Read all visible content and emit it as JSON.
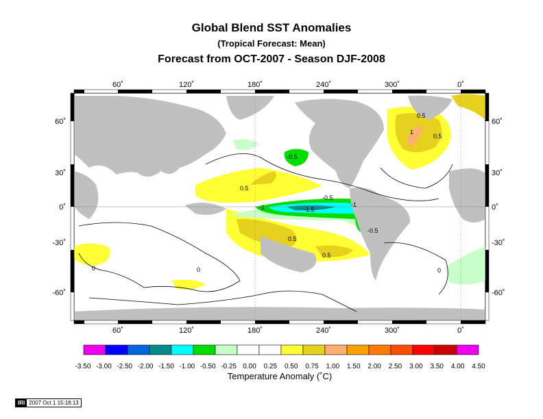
{
  "header": {
    "title": "Global Blend SST Anomalies",
    "subtitle": "(Tropical Forecast: Mean)",
    "forecast": "Forecast from OCT-2007 - Season DJF-2008"
  },
  "map": {
    "lon_labels": [
      "60˚",
      "120˚",
      "180˚",
      "240˚",
      "300˚",
      "0˚"
    ],
    "lat_labels": [
      "60˚",
      "30˚",
      "0˚",
      "-30˚",
      "-60˚"
    ],
    "contour_labels": [
      "0.5",
      "0.5",
      "-0.5",
      "-1",
      "-1.5",
      "-1",
      "-0.5",
      "0.5",
      "0.5",
      "-0.5",
      "0.5",
      "1",
      "0",
      "0",
      "0"
    ],
    "land_color": "#c0c0c0",
    "ocean_color": "#ffffff"
  },
  "colorbar": {
    "tick_labels": [
      "-3.50",
      "-3.00",
      "-2.50",
      "-2.00",
      "-1.50",
      "-1.00",
      "-0.50",
      "-0.25",
      "0.00",
      "0.25",
      "0.50",
      "0.75",
      "1.00",
      "1.50",
      "2.00",
      "2.50",
      "3.00",
      "3.50",
      "4.00",
      "4.50"
    ],
    "colors": [
      "#ee00ee",
      "#0000ff",
      "#0066dd",
      "#008a8a",
      "#00ffff",
      "#00dd00",
      "#c8ffc8",
      "#ffffff",
      "#ffffff",
      "#ffff33",
      "#e6d21e",
      "#ffb070",
      "#ffa000",
      "#ff7a00",
      "#ff4d00",
      "#ff0000",
      "#cc0000",
      "#ee00ee"
    ],
    "label": "Temperature Anomaly (˚C)"
  },
  "footer": {
    "logo": "IRI",
    "timestamp": "2007 Oct  1 15:18:13"
  }
}
